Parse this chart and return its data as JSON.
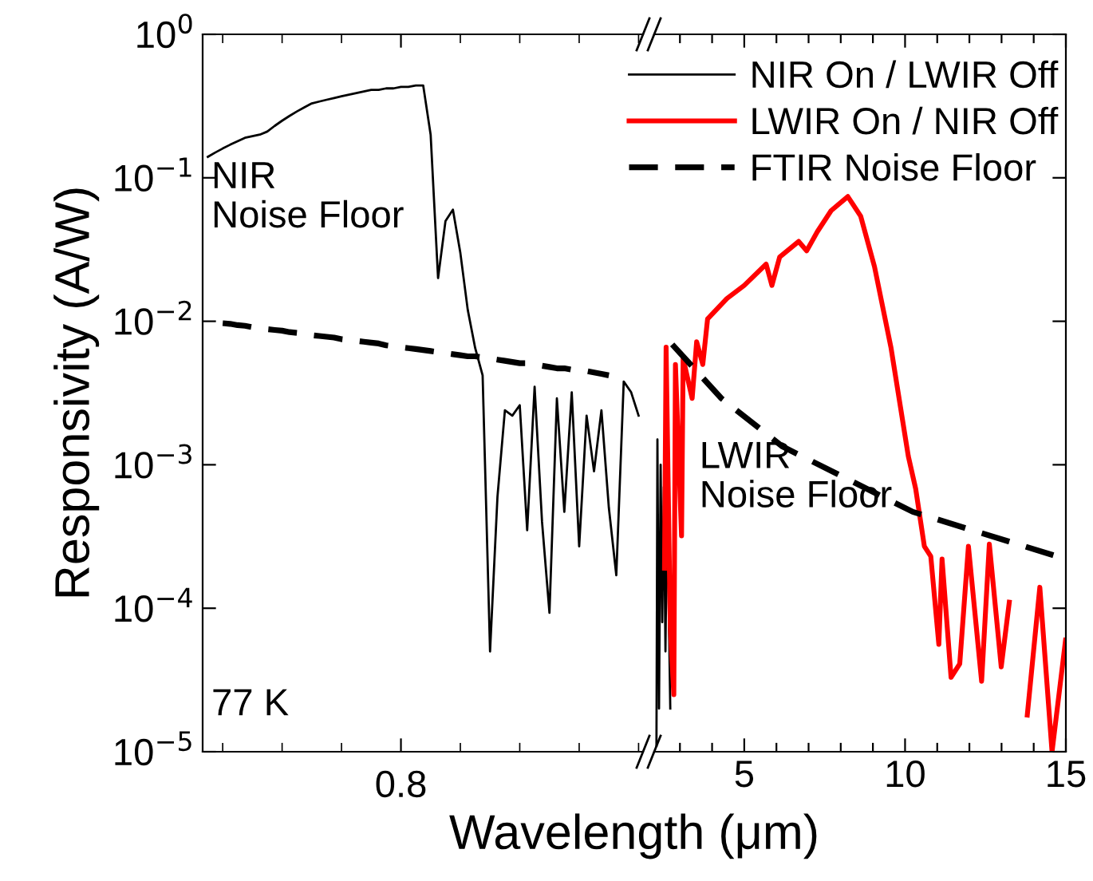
{
  "chart_data": [
    {
      "type": "line",
      "xlabel": "Wavelength (μm)",
      "ylabel": "Responsivity (A/W)",
      "log": "y",
      "grid": false,
      "legend": false,
      "tick_labels": "y",
      "categories": [
        null,
        null,
        null,
        null,
        null,
        null,
        null,
        null,
        null,
        null,
        null,
        null,
        null,
        null,
        null,
        null,
        null,
        null,
        null,
        null,
        null,
        null,
        null,
        null,
        null,
        null,
        null,
        null,
        null,
        null,
        null,
        null,
        null,
        null,
        null,
        null,
        null,
        null,
        null,
        null,
        null,
        null,
        null,
        null,
        null,
        null,
        null,
        null,
        null,
        null,
        null,
        null,
        null,
        null,
        null,
        null,
        null,
        null,
        null
      ],
      "ylim": [
        1e-05,
        1
      ],
      "yticks": [
        {
          "value": 1e-05,
          "label": "10$^{−5}$"
        },
        {
          "value": 0.0001,
          "label": "10$^{−4}$"
        },
        {
          "value": 0.001,
          "label": "10$^{−3}$"
        },
        {
          "value": 0.01,
          "label": "10$^{−2}$"
        },
        {
          "value": 0.1,
          "label": "10$^{−1}$"
        },
        {
          "value": 1,
          "label": "10$^{0}$"
        }
      ],
      "annotations": [
        "NIR\nNoise Floor",
        "77 K",
        "0.8"
      ],
      "series": [
        {
          "color": "#000000",
          "line_style": "solid",
          "values": [
            0.14,
            0.15,
            0.16,
            0.17,
            0.18,
            0.19,
            0.195,
            0.2,
            0.21,
            0.23,
            0.25,
            0.27,
            0.29,
            0.31,
            0.33,
            0.34,
            0.35,
            0.36,
            0.37,
            0.38,
            0.39,
            0.4,
            0.41,
            0.41,
            0.42,
            0.42,
            0.43,
            0.43,
            0.44,
            0.44,
            0.2,
            0.02,
            0.05,
            0.06,
            0.03,
            0.012,
            0.0065,
            0.0042,
            5e-05,
            0.0006,
            0.0024,
            0.0022,
            0.0026,
            0.00035,
            0.0035,
            0.0004,
            9.3e-05,
            0.0029,
            0.00047,
            0.0032,
            0.00027,
            0.0022,
            0.0009,
            0.0024,
            0.0005,
            0.00017,
            0.0038,
            0.0032,
            0.0022
          ]
        },
        {
          "color": "#000000",
          "line_style": "dashed",
          "values": [
            null,
            null,
            0.0097,
            0.0096,
            0.0094,
            0.0093,
            0.0091,
            0.009,
            0.0088,
            0.0087,
            0.0086,
            0.0084,
            0.0083,
            0.0082,
            0.008,
            0.0079,
            0.0078,
            0.0077,
            0.0075,
            0.0074,
            0.0073,
            0.0072,
            0.0071,
            0.007,
            0.0068,
            0.0067,
            0.0066,
            0.0065,
            0.0064,
            0.0063,
            0.0062,
            0.0061,
            0.006,
            0.0059,
            0.0058,
            0.0057,
            0.0057,
            0.0056,
            0.0055,
            0.0054,
            0.0053,
            0.0052,
            0.0051,
            0.0051,
            0.005,
            0.0049,
            0.0048,
            0.0047,
            0.0047,
            0.0046,
            0.0045,
            0.0045,
            0.0044,
            0.0043,
            0.0042,
            null,
            null,
            null,
            null
          ]
        }
      ]
    },
    {
      "type": "line",
      "log": "y",
      "grid": false,
      "legend": "top",
      "tick_labels": "x",
      "xlim": [
        2.2,
        15
      ],
      "xticks": [
        {
          "value": 3,
          "label": null
        },
        {
          "value": 4,
          "label": null
        },
        5,
        {
          "value": 6,
          "label": null
        },
        {
          "value": 7,
          "label": null
        },
        {
          "value": 8,
          "label": null
        },
        {
          "value": 9,
          "label": null
        },
        10,
        {
          "value": 11,
          "label": null
        },
        {
          "value": 12,
          "label": null
        },
        {
          "value": 13,
          "label": null
        },
        {
          "value": 14,
          "label": null
        },
        15
      ],
      "ylim": [
        1e-05,
        1
      ],
      "yticks": [
        {
          "value": 1e-05,
          "label": null
        },
        {
          "value": 0.0001,
          "label": null
        },
        {
          "value": 0.001,
          "label": null
        },
        {
          "value": 0.01,
          "label": null
        },
        {
          "value": 0.1,
          "label": null
        },
        {
          "value": 1,
          "label": null
        }
      ],
      "annotations": [
        "LWIR\nNoise Floor"
      ],
      "series": [
        {
          "name": "NIR On / LWIR Off",
          "color": "#000000",
          "line_style": "solid",
          "x": [
            2.27,
            2.3,
            2.35,
            2.4,
            2.45,
            2.5,
            2.55,
            2.6,
            2.7
          ],
          "values": [
            1.1e-05,
            0.0015,
            2e-05,
            0.001,
            8e-05,
            0.0007,
            5e-05,
            0.0006,
            2e-05
          ]
        },
        {
          "name": "LWIR On / NIR Off",
          "color": "#ff0000",
          "line_style": "solid",
          "x": [
            2.52,
            2.57,
            2.7,
            2.81,
            2.86,
            3.05,
            3.1,
            3.38,
            3.52,
            3.71,
            3.86,
            4.46,
            5.0,
            5.68,
            5.86,
            6.1,
            6.69,
            6.94,
            7.27,
            7.7,
            8.22,
            8.62,
            9.05,
            9.56,
            10.1,
            10.33,
            10.6,
            10.8,
            11.05,
            11.15,
            11.43,
            11.7,
            11.97,
            12.38,
            12.62,
            12.99,
            13.24,
            13.5,
            13.8,
            14.19,
            14.57,
            14.99
          ],
          "values": [
            0.00019,
            0.0066,
            7.4e-05,
            2.5e-05,
            0.005,
            0.00032,
            0.0055,
            0.0029,
            0.0072,
            0.005,
            0.0104,
            0.0144,
            0.0178,
            0.025,
            0.0178,
            0.028,
            0.036,
            0.031,
            0.042,
            0.059,
            0.074,
            0.054,
            0.024,
            0.0066,
            0.00115,
            0.00068,
            0.00027,
            0.00023,
            5.6e-05,
            0.00022,
            3.3e-05,
            4.1e-05,
            0.00027,
            3.1e-05,
            0.00028,
            3.9e-05,
            0.00011,
            null,
            1.8e-05,
            0.00014,
            1e-05,
            6e-05
          ]
        },
        {
          "name": "FTIR Noise Floor",
          "color": "#000000",
          "line_style": "dashed",
          "x": [
            2.76,
            4.29,
            6.19,
            10.24,
            15
          ],
          "values": [
            0.0069,
            0.0029,
            0.00134,
            0.00047,
            0.00022
          ]
        }
      ]
    }
  ]
}
